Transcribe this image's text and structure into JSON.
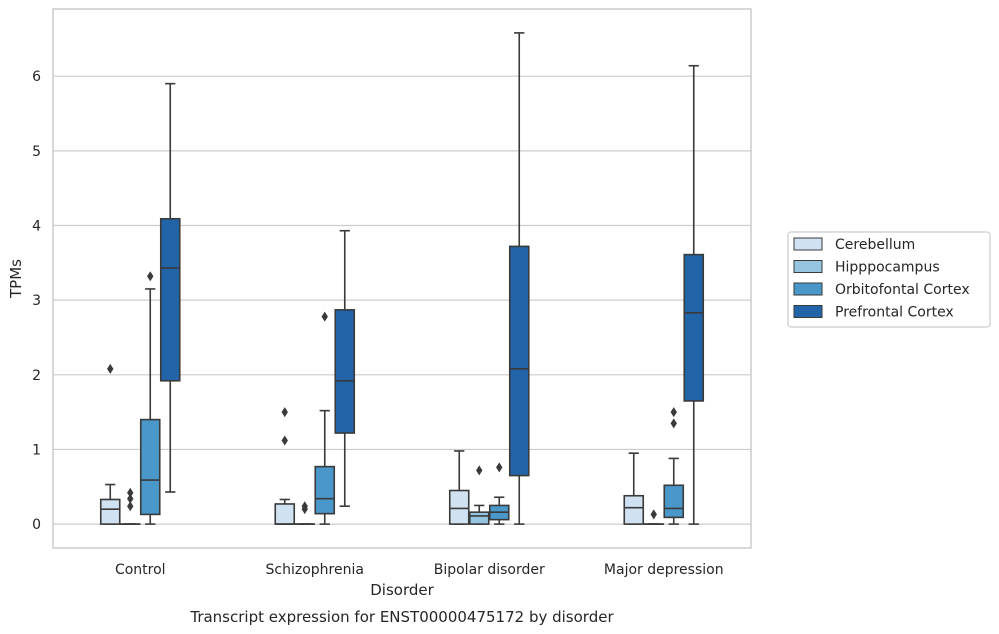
{
  "chart_data": {
    "type": "box",
    "title": "Transcript expression for ENST00000475172 by disorder",
    "xlabel": "Disorder",
    "ylabel": "TPMs",
    "ylim": [
      -0.32,
      6.9
    ],
    "yticks": [
      0,
      1,
      2,
      3,
      4,
      5,
      6
    ],
    "grid": "horizontal",
    "legend_position": "right",
    "categories": [
      "Control",
      "Schizophrenia",
      "Bipolar disorder",
      "Major depression"
    ],
    "series": [
      {
        "name": "Cerebellum",
        "color": "#d0e1f2",
        "boxes": [
          {
            "whisker_low": 0,
            "q1": 0,
            "median": 0.2,
            "q3": 0.33,
            "whisker_high": 0.53,
            "outliers": [
              2.08
            ]
          },
          {
            "whisker_low": 0,
            "q1": 0,
            "median": 0,
            "q3": 0.27,
            "whisker_high": 0.33,
            "outliers": [
              1.12,
              1.5
            ]
          },
          {
            "whisker_low": 0,
            "q1": 0,
            "median": 0.21,
            "q3": 0.45,
            "whisker_high": 0.98,
            "outliers": []
          },
          {
            "whisker_low": 0,
            "q1": 0,
            "median": 0.22,
            "q3": 0.38,
            "whisker_high": 0.95,
            "outliers": []
          }
        ]
      },
      {
        "name": "Hipppocampus",
        "color": "#94c4df",
        "boxes": [
          {
            "whisker_low": 0,
            "q1": 0,
            "median": 0,
            "q3": 0,
            "whisker_high": 0,
            "outliers": [
              0.24,
              0.34,
              0.42
            ]
          },
          {
            "whisker_low": 0,
            "q1": 0,
            "median": 0,
            "q3": 0,
            "whisker_high": 0,
            "outliers": [
              0.2,
              0.24
            ]
          },
          {
            "whisker_low": 0,
            "q1": 0,
            "median": 0.11,
            "q3": 0.16,
            "whisker_high": 0.25,
            "outliers": [
              0.72
            ]
          },
          {
            "whisker_low": 0,
            "q1": 0,
            "median": 0,
            "q3": 0,
            "whisker_high": 0,
            "outliers": [
              0.13
            ]
          }
        ]
      },
      {
        "name": "Orbitofontal Cortex",
        "color": "#4a98c9",
        "boxes": [
          {
            "whisker_low": 0,
            "q1": 0.13,
            "median": 0.59,
            "q3": 1.4,
            "whisker_high": 3.15,
            "outliers": [
              3.32
            ]
          },
          {
            "whisker_low": 0,
            "q1": 0.14,
            "median": 0.34,
            "q3": 0.77,
            "whisker_high": 1.52,
            "outliers": [
              2.78
            ]
          },
          {
            "whisker_low": 0,
            "q1": 0.06,
            "median": 0.16,
            "q3": 0.25,
            "whisker_high": 0.36,
            "outliers": [
              0.76
            ]
          },
          {
            "whisker_low": 0,
            "q1": 0.09,
            "median": 0.21,
            "q3": 0.52,
            "whisker_high": 0.88,
            "outliers": [
              1.35,
              1.5
            ]
          }
        ]
      },
      {
        "name": "Prefrontal Cortex",
        "color": "#2264a8",
        "boxes": [
          {
            "whisker_low": 0.43,
            "q1": 1.92,
            "median": 3.43,
            "q3": 4.09,
            "whisker_high": 5.9,
            "outliers": []
          },
          {
            "whisker_low": 0.24,
            "q1": 1.22,
            "median": 1.92,
            "q3": 2.87,
            "whisker_high": 3.93,
            "outliers": []
          },
          {
            "whisker_low": 0,
            "q1": 0.65,
            "median": 2.08,
            "q3": 3.72,
            "whisker_high": 6.58,
            "outliers": []
          },
          {
            "whisker_low": 0,
            "q1": 1.65,
            "median": 2.83,
            "q3": 3.61,
            "whisker_high": 6.14,
            "outliers": []
          }
        ]
      }
    ]
  }
}
